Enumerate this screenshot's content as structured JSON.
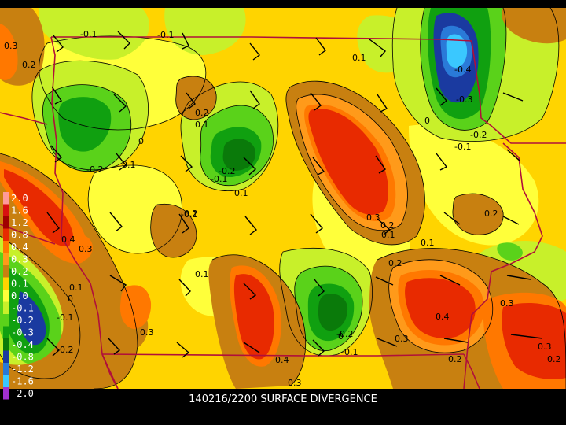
{
  "map": {
    "title": "140216/2200 SURFACE DIVERGENCE",
    "legend": [
      {
        "label": "2.0",
        "color": "#ff9a9a"
      },
      {
        "label": "1.6",
        "color": "#d81010"
      },
      {
        "label": "1.2",
        "color": "#a00000"
      },
      {
        "label": "0.8",
        "color": "#e82a00"
      },
      {
        "label": "0.4",
        "color": "#ff7800"
      },
      {
        "label": "0.3",
        "color": "#ff9a1a"
      },
      {
        "label": "0.2",
        "color": "#c88010"
      },
      {
        "label": "0.1",
        "color": "#ffd400"
      },
      {
        "label": "0.0",
        "color": "#ffff3a"
      },
      {
        "label": "-0.1",
        "color": "#c8f02a"
      },
      {
        "label": "-0.2",
        "color": "#5ad21a"
      },
      {
        "label": "-0.3",
        "color": "#10a010"
      },
      {
        "label": "-0.4",
        "color": "#0a7a0a"
      },
      {
        "label": "-0.8",
        "color": "#1a3aa0"
      },
      {
        "label": "-1.2",
        "color": "#2a7ad8"
      },
      {
        "label": "-1.6",
        "color": "#3ac8ff"
      },
      {
        "label": "-2.0",
        "color": "#a030d0"
      }
    ],
    "contour_labels": [
      "0.3",
      "0.2",
      "-0.1",
      "-0.1",
      "-0.2",
      "0.1",
      "0",
      "-0.1",
      "0.1",
      "0.2",
      "-0.2",
      "-0.1",
      "0.1",
      "0.4",
      "0.3",
      "0.1",
      "0",
      "-0.1",
      "-0.2",
      "0.3",
      "0.1",
      "0.4",
      "0.3",
      "0.2",
      "0.3",
      "0.2",
      "0.1",
      "0",
      "-0.2",
      "-0.1",
      "0.3",
      "0.2",
      "0.2",
      "0.4",
      "0.3",
      "0.2",
      "0.1",
      "-0.4",
      "-0.3",
      "0",
      "-0.2",
      "-0.1",
      "0.2",
      "0.3",
      "0.1"
    ]
  }
}
